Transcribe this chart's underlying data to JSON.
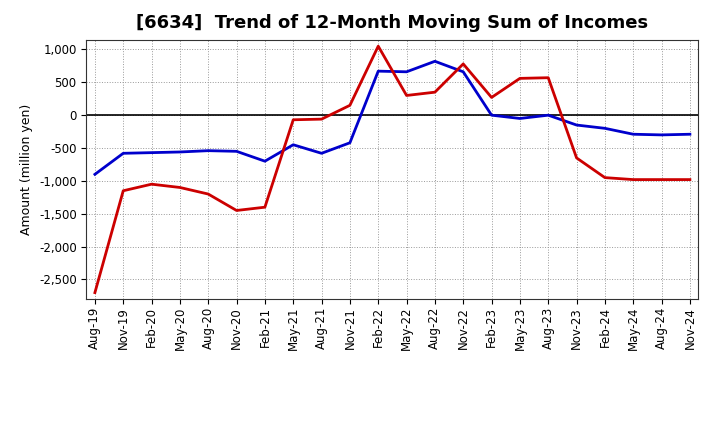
{
  "title": "[6634]  Trend of 12-Month Moving Sum of Incomes",
  "ylabel": "Amount (million yen)",
  "ylim": [
    -2800,
    1150
  ],
  "yticks": [
    -2500,
    -2000,
    -1500,
    -1000,
    -500,
    0,
    500,
    1000
  ],
  "background_color": "#ffffff",
  "grid_color": "#999999",
  "x_labels": [
    "Aug-19",
    "Nov-19",
    "Feb-20",
    "May-20",
    "Aug-20",
    "Nov-20",
    "Feb-21",
    "May-21",
    "Aug-21",
    "Nov-21",
    "Feb-22",
    "May-22",
    "Aug-22",
    "Nov-22",
    "Feb-23",
    "May-23",
    "Aug-23",
    "Nov-23",
    "Feb-24",
    "May-24",
    "Aug-24",
    "Nov-24"
  ],
  "ordinary_income": [
    -900,
    -580,
    -570,
    -560,
    -540,
    -550,
    -700,
    -450,
    -580,
    -420,
    670,
    660,
    820,
    660,
    0,
    -50,
    0,
    -150,
    -200,
    -290,
    -300,
    -290
  ],
  "net_income": [
    -2700,
    -1150,
    -1050,
    -1100,
    -1200,
    -1450,
    -1400,
    -70,
    -60,
    150,
    1050,
    300,
    350,
    780,
    270,
    560,
    570,
    -650,
    -950,
    -980,
    -980,
    -980
  ],
  "ordinary_color": "#0000cc",
  "net_color": "#cc0000",
  "line_width": 2.0,
  "title_fontsize": 13,
  "ylabel_fontsize": 9,
  "tick_fontsize": 8.5,
  "legend_fontsize": 9
}
